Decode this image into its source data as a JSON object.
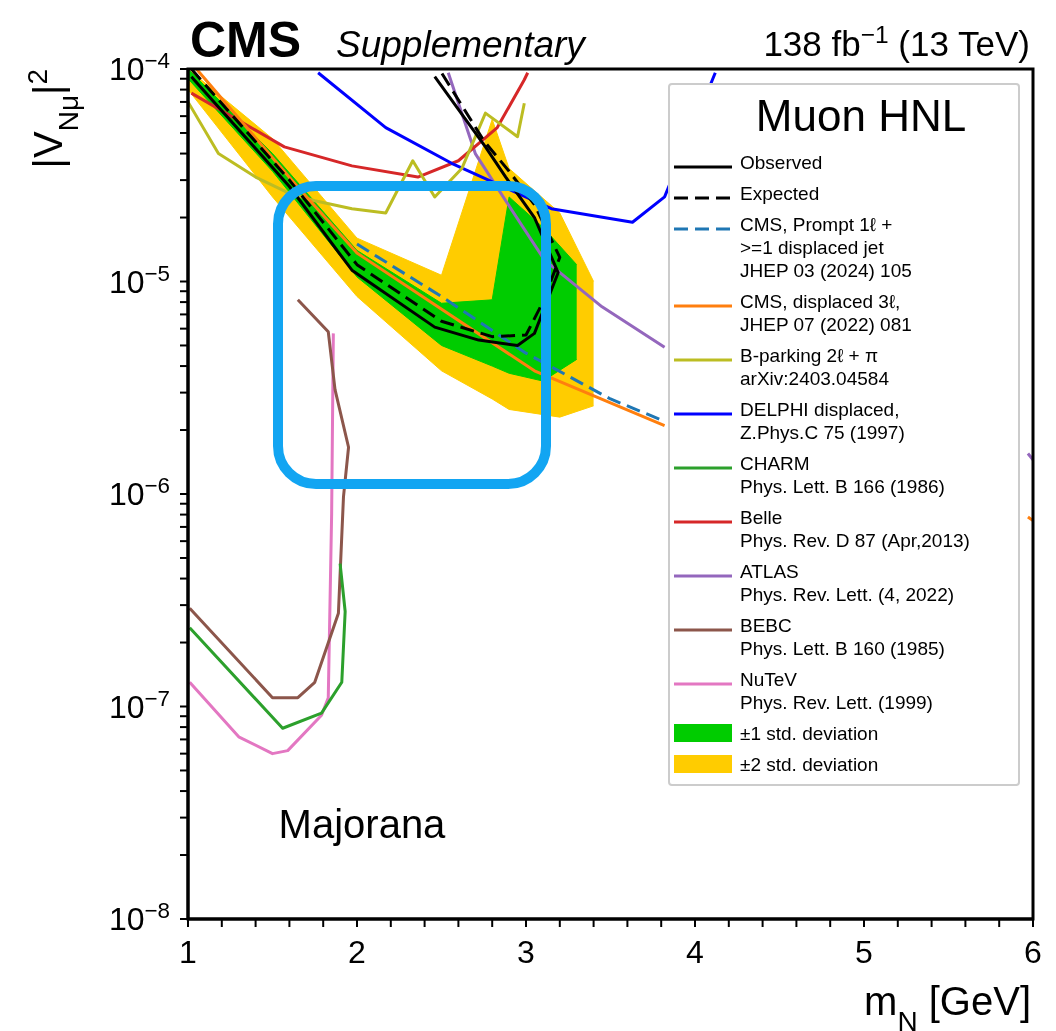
{
  "chart_data": {
    "type": "line",
    "title": "CMS",
    "subtitle": "Supplementary",
    "xlabel": "m$_{N}$ [GeV]",
    "ylabel": "|V$_{Nμ}$|$^{2}$",
    "legend_title": "Muon HNL",
    "legend": "top right",
    "marker": "none",
    "line_style": "solid",
    "log": "y",
    "annotations": [
      "138 fb$^{−1}$ (13 TeV)",
      "Majorana"
    ],
    "xlim": [
      1,
      6
    ],
    "xticks": [
      1,
      {
        "value": 1.2,
        "label": null
      },
      {
        "value": 1.4,
        "label": null
      },
      {
        "value": 1.6,
        "label": null
      },
      {
        "value": 1.8,
        "label": null
      },
      2,
      {
        "value": 2.2,
        "label": null
      },
      {
        "value": 2.4,
        "label": null
      },
      {
        "value": 2.6,
        "label": null
      },
      {
        "value": 2.8,
        "label": null
      },
      3,
      {
        "value": 3.2,
        "label": null
      },
      {
        "value": 3.4,
        "label": null
      },
      {
        "value": 3.6,
        "label": null
      },
      {
        "value": 3.8,
        "label": null
      },
      4,
      {
        "value": 4.2,
        "label": null
      },
      {
        "value": 4.4,
        "label": null
      },
      {
        "value": 4.6,
        "label": null
      },
      {
        "value": 4.8,
        "label": null
      },
      5,
      {
        "value": 5.2,
        "label": null
      },
      {
        "value": 5.4,
        "label": null
      },
      {
        "value": 5.6,
        "label": null
      },
      {
        "value": 5.8,
        "label": null
      },
      6
    ],
    "ylim": [
      1e-08,
      0.0001
    ],
    "yticks": [
      {
        "value": 1e-08,
        "label": "10$^{−8}$"
      },
      {
        "value": 2e-08,
        "label": null
      },
      {
        "value": 3e-08,
        "label": null
      },
      {
        "value": 4e-08,
        "label": null
      },
      {
        "value": 5e-08,
        "label": null
      },
      {
        "value": 6e-08,
        "label": null
      },
      {
        "value": 7e-08,
        "label": null
      },
      {
        "value": 8e-08,
        "label": null
      },
      {
        "value": 9e-08,
        "label": null
      },
      {
        "value": 1e-07,
        "label": "10$^{−7}$"
      },
      {
        "value": 2e-07,
        "label": null
      },
      {
        "value": 3e-07,
        "label": null
      },
      {
        "value": 4e-07,
        "label": null
      },
      {
        "value": 5e-07,
        "label": null
      },
      {
        "value": 6e-07,
        "label": null
      },
      {
        "value": 7e-07,
        "label": null
      },
      {
        "value": 8e-07,
        "label": null
      },
      {
        "value": 9e-07,
        "label": null
      },
      {
        "value": 1e-06,
        "label": "10$^{−6}$"
      },
      {
        "value": 2e-06,
        "label": null
      },
      {
        "value": 3e-06,
        "label": null
      },
      {
        "value": 4e-06,
        "label": null
      },
      {
        "value": 5e-06,
        "label": null
      },
      {
        "value": 6e-06,
        "label": null
      },
      {
        "value": 7e-06,
        "label": null
      },
      {
        "value": 8e-06,
        "label": null
      },
      {
        "value": 9e-06,
        "label": null
      },
      {
        "value": 1e-05,
        "label": "10$^{−5}$"
      },
      {
        "value": 2e-05,
        "label": null
      },
      {
        "value": 3e-05,
        "label": null
      },
      {
        "value": 4e-05,
        "label": null
      },
      {
        "value": 5e-05,
        "label": null
      },
      {
        "value": 6e-05,
        "label": null
      },
      {
        "value": 7e-05,
        "label": null
      },
      {
        "value": 8e-05,
        "label": null
      },
      {
        "value": 9e-05,
        "label": null
      },
      {
        "value": 0.0001,
        "label": "10$^{−4}$"
      }
    ],
    "series": [
      {
        "name": "Observed",
        "color": "#000000",
        "x": [
          1.02,
          1.6,
          1.97,
          2.46,
          2.72,
          2.95,
          3.05,
          3.19,
          3.05,
          2.88,
          2.76,
          2.46
        ],
        "values": [
          9.2e-05,
          2.8e-05,
          1.13e-05,
          6.1e-06,
          5.3e-06,
          5e-06,
          5.7e-06,
          1.1e-05,
          2e-05,
          3.1e-05,
          4.3e-05,
          9.2e-05
        ]
      },
      {
        "name": "Expected",
        "color": "#000000",
        "line_style": "dashed",
        "x": [
          1.02,
          1.6,
          2.0,
          2.5,
          2.8,
          3.0,
          3.1,
          3.2,
          3.05,
          2.9,
          2.75,
          2.5
        ],
        "values": [
          0.0001,
          3e-05,
          1.2e-05,
          6.5e-06,
          5.5e-06,
          5.6e-06,
          8e-06,
          1.3e-05,
          2.3e-05,
          3.3e-05,
          4.6e-05,
          9.6e-05
        ]
      },
      {
        "name": "CMS, Prompt 1ℓ +\n>=1 displaced jet\nJHEP 03 (2024) 105",
        "color": "#1f77b4",
        "line_style": "dashed",
        "x": [
          2.0,
          2.5,
          3.0,
          3.5,
          3.82
        ],
        "values": [
          1.5e-05,
          8.5e-06,
          4.6e-06,
          2.8e-06,
          2.2e-06
        ]
      },
      {
        "name": "CMS, displaced 3ℓ,\nJHEP 07 (2022) 081",
        "color": "#ff7f0e",
        "x": [
          1.05,
          1.63,
          2.0,
          3.05,
          3.82,
          4.5,
          5.97,
          6.0
        ],
        "values": [
          0.0001,
          2.9e-05,
          1.36e-05,
          3.8e-06,
          2.1e-06,
          null,
          7.8e-07,
          7.5e-07
        ]
      },
      {
        "name": "B-parking 2ℓ + π\narXiv:2403.04584",
        "color": "#bcbd22",
        "x": [
          1.0,
          1.18,
          1.4,
          1.6,
          1.75,
          1.97,
          2.17,
          2.33,
          2.46,
          2.62,
          2.76,
          2.95,
          2.99
        ],
        "values": [
          7e-05,
          4e-05,
          3.1e-05,
          2.6e-05,
          2.4e-05,
          2.2e-05,
          2.1e-05,
          3.7e-05,
          2.5e-05,
          3.4e-05,
          6.2e-05,
          4.8e-05,
          6.9e-05
        ]
      },
      {
        "name": "DELPHI displaced,\nZ.Phys.C 75 (1997)",
        "color": "#0000ff",
        "x": [
          1.77,
          2.17,
          2.56,
          3.15,
          3.63,
          3.82,
          4.12
        ],
        "values": [
          9.6e-05,
          5.3e-05,
          3.6e-05,
          2.2e-05,
          1.9e-05,
          2.5e-05,
          9.6e-05
        ]
      },
      {
        "name": "CHARM\nPhys. Lett. B 166 (1986)",
        "color": "#2ca02c",
        "x": [
          1.01,
          1.56,
          1.79,
          1.91,
          1.93,
          1.9
        ],
        "values": [
          2.35e-07,
          7.9e-08,
          9.3e-08,
          1.3e-07,
          2.8e-07,
          4.7e-07
        ]
      },
      {
        "name": "Belle\nPhys. Rev. D 87 (Apr,2013)",
        "color": "#d62728",
        "x": [
          1.02,
          1.57,
          1.97,
          2.36,
          2.6,
          2.83,
          2.99,
          3.01
        ],
        "values": [
          7.7e-05,
          4.3e-05,
          3.5e-05,
          3.1e-05,
          3.7e-05,
          5.3e-05,
          8.9e-05,
          9.6e-05
        ]
      },
      {
        "name": "ATLAS\nPhys. Rev. Lett. (4, 2022)",
        "color": "#9467bd",
        "x": [
          2.54,
          2.7,
          2.88,
          3.11,
          3.45,
          3.82,
          4.5,
          5.97,
          6.0
        ],
        "values": [
          9.6e-05,
          4e-05,
          2.4e-05,
          1.26e-05,
          7.6e-06,
          4.9e-06,
          null,
          1.55e-06,
          1.45e-06
        ]
      },
      {
        "name": "BEBC\nPhys. Lett. B 160 (1985)",
        "color": "#8c564b",
        "x": [
          1.01,
          1.5,
          1.65,
          1.75,
          1.89,
          1.92,
          1.95,
          1.87,
          1.83,
          1.65
        ],
        "values": [
          2.9e-07,
          1.1e-07,
          1.1e-07,
          1.3e-07,
          2.75e-07,
          9.7e-07,
          1.66e-06,
          3.1e-06,
          5.8e-06,
          8.2e-06
        ]
      },
      {
        "name": "NuTeV\nPhys. Rev. Lett. (1999)",
        "color": "#e377c2",
        "x": [
          1.01,
          1.3,
          1.5,
          1.59,
          1.79,
          1.83,
          1.85,
          1.86
        ],
        "values": [
          1.3e-07,
          7.2e-08,
          6e-08,
          6.2e-08,
          9.1e-08,
          1.1e-07,
          8.1e-07,
          5.7e-06
        ]
      },
      {
        "name": "±1 std. deviation",
        "type": "area",
        "color": "#00cc00",
        "x": [
          1.0,
          1.5,
          2.0,
          2.5,
          2.8,
          2.9,
          3.1,
          3.3
        ],
        "values": [
          null,
          null,
          null,
          null,
          null,
          null,
          null,
          null
        ],
        "lower": [
          9e-05,
          3.3e-05,
          1.05e-05,
          5e-06,
          4e-06,
          3.7e-06,
          3.4e-06,
          4.3e-06
        ],
        "upper": [
          0.0001,
          4e-05,
          1.4e-05,
          7.9e-06,
          8.2e-06,
          2.5e-05,
          1.8e-05,
          1.2e-05
        ]
      },
      {
        "name": "±2 std. deviation",
        "type": "area",
        "color": "#ffcc00",
        "x": [
          1.0,
          1.5,
          2.0,
          2.5,
          2.8,
          2.9,
          3.2,
          3.4
        ],
        "values": [
          null,
          null,
          null,
          null,
          null,
          null,
          null,
          null
        ],
        "lower": [
          8e-05,
          2.5e-05,
          8.5e-06,
          3.8e-06,
          2.8e-06,
          2.5e-06,
          2.3e-06,
          2.6e-06
        ],
        "upper": [
          0.0001,
          4.7e-05,
          1.6e-05,
          1.07e-05,
          5.8e-05,
          3.4e-05,
          2.1e-05,
          1e-05
        ]
      }
    ]
  }
}
